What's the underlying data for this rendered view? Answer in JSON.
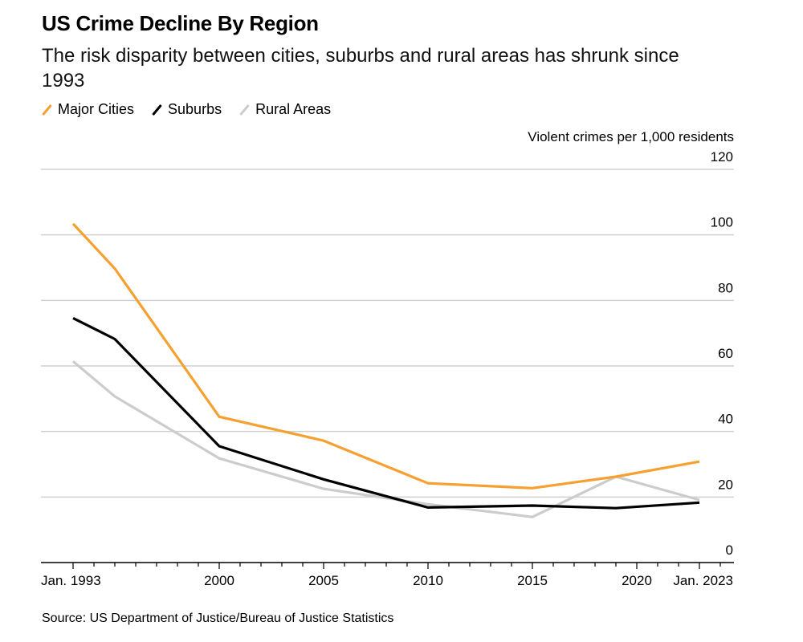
{
  "header": {
    "title": "US Crime Decline By Region",
    "subtitle": "The risk disparity between cities, suburbs and rural areas has shrunk since 1993"
  },
  "source": "Source: US Department of Justice/Bureau of Justice Statistics",
  "colors": {
    "major_cities": "#f5a030",
    "suburbs": "#000000",
    "rural_areas": "#cccccc",
    "grid": "#d0d0d0",
    "axis": "#000000"
  },
  "chart_data": {
    "type": "line",
    "title": "US Crime Decline By Region",
    "subtitle": "The risk disparity between cities, suburbs and rural areas has shrunk since 1993",
    "ylabel": "Violent crimes per 1,000 residents",
    "xlabel": "",
    "x": [
      1993,
      1995,
      2000,
      2005,
      2010,
      2015,
      2019,
      2023
    ],
    "xlim": [
      1991.5,
      2024.6
    ],
    "ylim": [
      0,
      120
    ],
    "yticks": [
      0,
      20,
      40,
      60,
      80,
      100,
      120
    ],
    "ytick_labels": [
      "0",
      "20",
      "40",
      "60",
      "80",
      "100",
      "120"
    ],
    "xticks_labeled": [
      {
        "year": 1993,
        "label": "Jan. 1993"
      },
      {
        "year": 2000,
        "label": "2000"
      },
      {
        "year": 2005,
        "label": "2005"
      },
      {
        "year": 2010,
        "label": "2010"
      },
      {
        "year": 2015,
        "label": "2015"
      },
      {
        "year": 2020,
        "label": "2020"
      },
      {
        "year": 2023,
        "label": "Jan. 2023"
      }
    ],
    "minor_ticks": "yearly",
    "grid": true,
    "y_axis_side": "right",
    "legend_position": "top-left",
    "series": [
      {
        "key": "major_cities",
        "name": "Major Cities",
        "values": [
          103.4,
          89.7,
          44.5,
          37.2,
          24.2,
          22.7,
          26.2,
          30.8
        ]
      },
      {
        "key": "suburbs",
        "name": "Suburbs",
        "values": [
          74.6,
          68.2,
          35.5,
          25.4,
          16.8,
          17.4,
          16.6,
          18.3
        ]
      },
      {
        "key": "rural_areas",
        "name": "Rural Areas",
        "values": [
          61.4,
          50.7,
          31.8,
          22.5,
          17.8,
          13.9,
          26.2,
          19.1
        ]
      }
    ]
  }
}
